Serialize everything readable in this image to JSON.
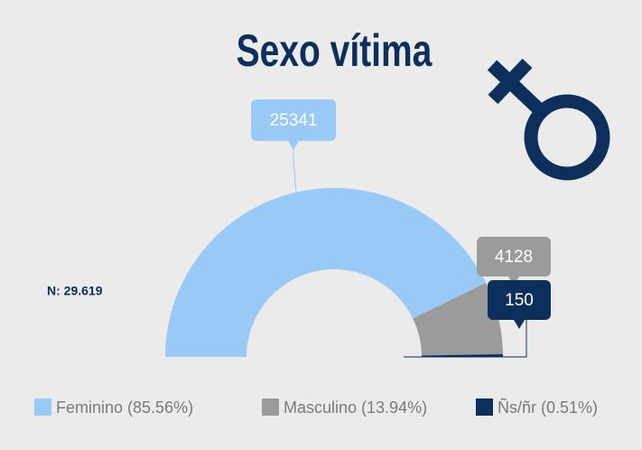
{
  "chart_data": {
    "type": "semidonut",
    "title": "Sexo vítima",
    "annotation": "N: 29.619",
    "categories": [
      "Feminino (85.56%)",
      "Masculino (13.94%)",
      "Ñs/ñr (0.51%)"
    ],
    "values": [
      25341,
      4128,
      150
    ],
    "colors": [
      "#99c9f5",
      "#9b9b9b",
      "#0d2f5c"
    ]
  }
}
